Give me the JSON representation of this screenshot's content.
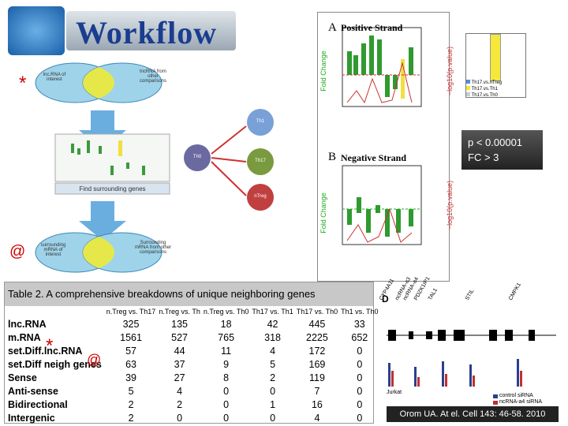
{
  "workflow": {
    "title": "Workflow",
    "star_marker": "*",
    "at_marker": "@",
    "lnc_of_interest": "lnc.RNA of interest",
    "lnc_other": "lncRNA from other comparisons",
    "find_genes": "Find surrounding genes",
    "mrna_of_interest": "surrounding mRNA of interest",
    "mrna_other": "Surrounding mRNA from other comparisons",
    "cells": [
      "Th1",
      "Th17",
      "nTreg",
      "Th0"
    ]
  },
  "figure": {
    "panel_a": "A",
    "panel_a_title": "Positive Strand",
    "panel_b": "B",
    "panel_b_title": "Negative Strand",
    "y_label": "Fold Change",
    "y2_label": "−log10(p.value)",
    "legend": [
      "Th17.vs.nTreg",
      "Th17.vs.Th1",
      "Th17.vs.Th0"
    ]
  },
  "criteria": [
    "p < 0.00001",
    "FC > 3"
  ],
  "table": {
    "title": "Table 2. A comprehensive breakdowns of unique neighboring genes",
    "columns": [
      "n.Treg vs. Th17",
      "n.Treg vs. Th",
      "n.Treg vs. Th0",
      "Th17 vs. Th1",
      "Th17 vs. Th0",
      "Th1 vs. Th0"
    ],
    "rows": [
      {
        "label": "lnc.RNA",
        "values": [
          325,
          135,
          18,
          42,
          445,
          33
        ]
      },
      {
        "label": "m.RNA",
        "values": [
          1561,
          527,
          765,
          318,
          2225,
          652
        ]
      },
      {
        "label": "set.Diff.lnc.RNA",
        "values": [
          57,
          44,
          11,
          4,
          172,
          0
        ]
      },
      {
        "label": "set.Diff neigh genes",
        "values": [
          63,
          37,
          9,
          5,
          169,
          0
        ]
      },
      {
        "label": "Sense",
        "values": [
          39,
          27,
          8,
          2,
          119,
          0
        ]
      },
      {
        "label": "Anti-sense",
        "values": [
          5,
          4,
          0,
          0,
          7,
          0
        ]
      },
      {
        "label": "Bidirectional",
        "values": [
          2,
          2,
          0,
          1,
          16,
          0
        ]
      },
      {
        "label": "Intergenic",
        "values": [
          2,
          0,
          0,
          0,
          4,
          0
        ]
      }
    ]
  },
  "panel_d": {
    "label": "D",
    "genes": [
      "CYP4A11",
      "ncRNA-a3",
      "ncRNA-a4",
      "PDZK1IP1",
      "TAL1",
      "STIL",
      "CMPK1"
    ],
    "cell_line": "Jurkat",
    "legend": [
      "control siRNA",
      "ncRNA-a4 siRNA"
    ]
  },
  "citation": "Orom UA. At el. Cell 143: 46-58. 2010"
}
